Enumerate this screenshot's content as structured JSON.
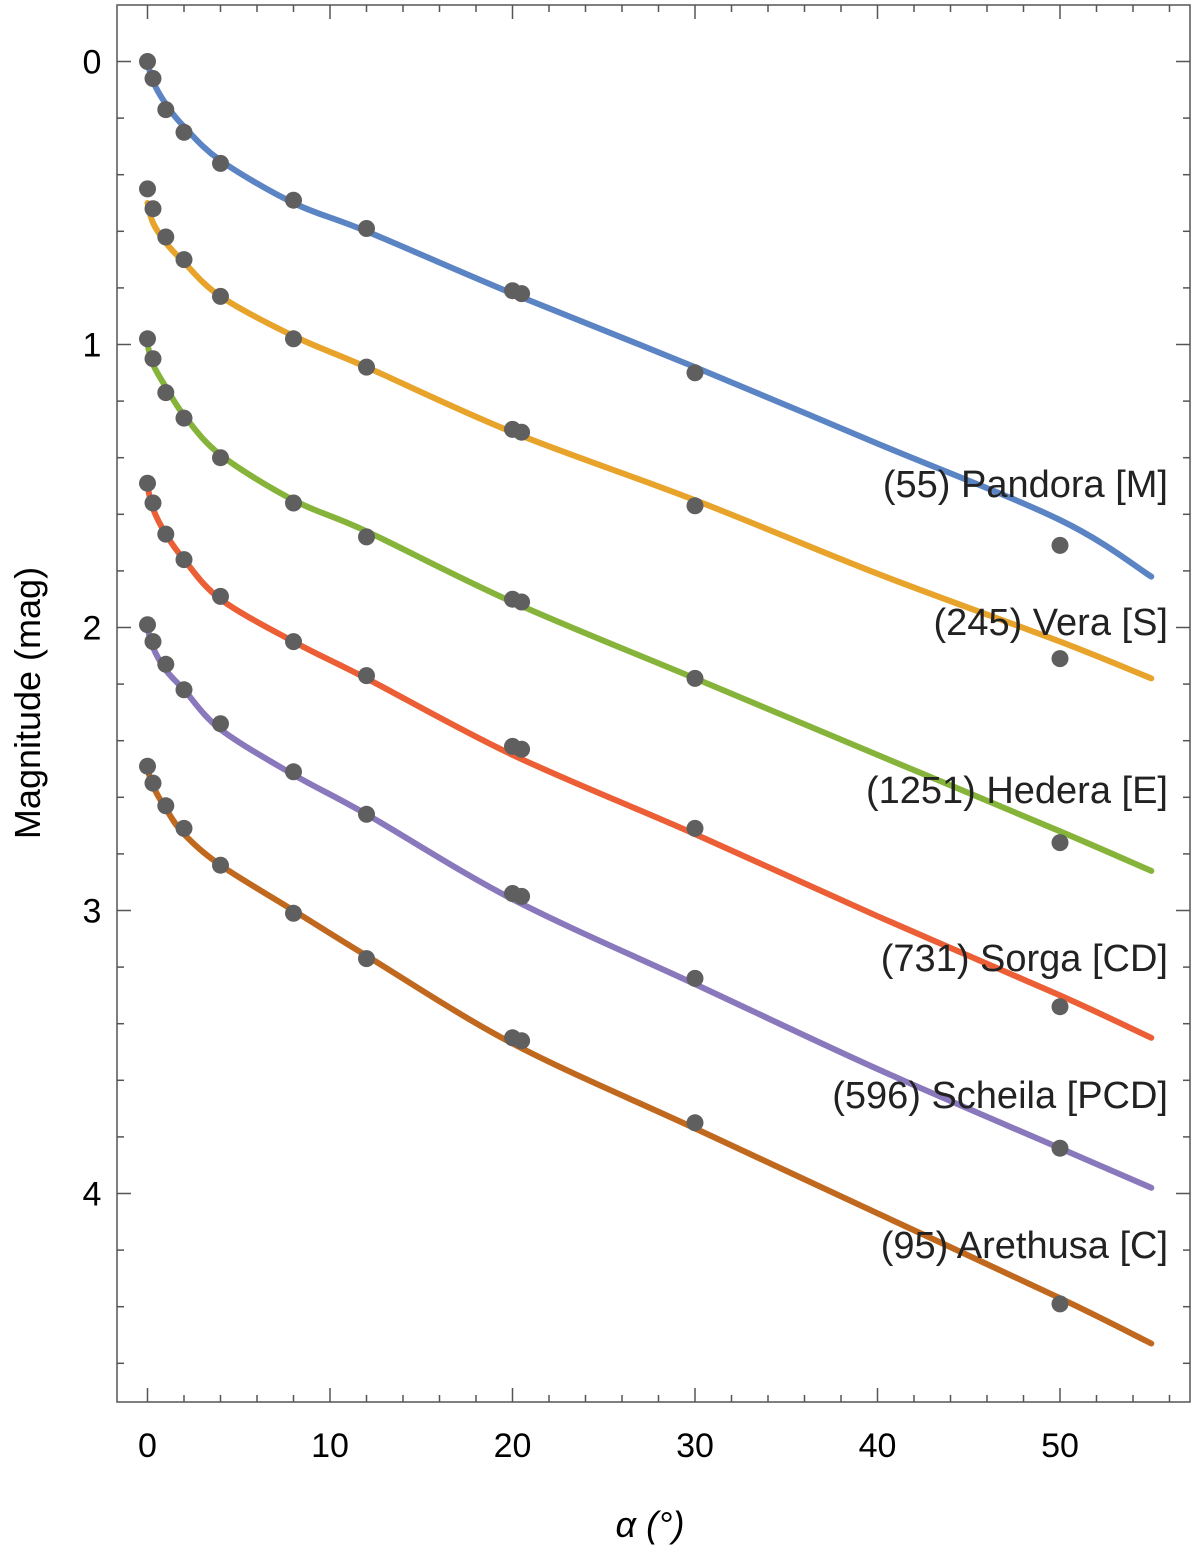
{
  "chart_data": {
    "type": "line",
    "xlabel": "α (°)",
    "ylabel": "Magnitude (mag)",
    "xlim": [
      -1.5,
      57
    ],
    "ylim": [
      4.75,
      -0.2
    ],
    "y_axis_inverted": true,
    "x_ticks": [
      0,
      10,
      20,
      30,
      40,
      50
    ],
    "y_ticks": [
      0,
      1,
      2,
      3,
      4
    ],
    "x_minor_step": 2,
    "y_minor_step": 0.2,
    "grid": false,
    "observation_marker_color": "#5f5f5f",
    "series": [
      {
        "name": "(55) Pandora [M]",
        "color": "#5b84c4",
        "curve_x": [
          0,
          0.3,
          1,
          2,
          4,
          8,
          12,
          20,
          30,
          40,
          50,
          55
        ],
        "curve_y": [
          0.0,
          0.07,
          0.15,
          0.23,
          0.35,
          0.5,
          0.6,
          0.82,
          1.08,
          1.35,
          1.62,
          1.82
        ],
        "points_x": [
          0,
          0.3,
          1,
          2,
          4,
          8,
          12,
          20,
          20.5,
          30,
          50
        ],
        "points_y": [
          0.0,
          0.06,
          0.17,
          0.25,
          0.36,
          0.49,
          0.59,
          0.81,
          0.82,
          1.1,
          1.71
        ]
      },
      {
        "name": "(245) Vera [S]",
        "color": "#e8a32a",
        "curve_x": [
          0,
          0.3,
          1,
          2,
          4,
          8,
          12,
          20,
          30,
          40,
          50,
          55
        ],
        "curve_y": [
          0.5,
          0.57,
          0.64,
          0.71,
          0.83,
          0.97,
          1.08,
          1.31,
          1.55,
          1.81,
          2.05,
          2.18
        ],
        "points_x": [
          0,
          0.3,
          1,
          2,
          4,
          8,
          12,
          20,
          20.5,
          30,
          50
        ],
        "points_y": [
          0.45,
          0.52,
          0.62,
          0.7,
          0.83,
          0.98,
          1.08,
          1.3,
          1.31,
          1.57,
          2.11
        ]
      },
      {
        "name": "(1251) Hedera [E]",
        "color": "#86b33a",
        "curve_x": [
          0,
          0.3,
          1,
          2,
          4,
          8,
          12,
          20,
          30,
          40,
          50,
          55
        ],
        "curve_y": [
          1.0,
          1.07,
          1.15,
          1.25,
          1.39,
          1.55,
          1.66,
          1.91,
          2.18,
          2.45,
          2.72,
          2.86
        ],
        "points_x": [
          0,
          0.3,
          1,
          2,
          4,
          8,
          12,
          20,
          20.5,
          30,
          50
        ],
        "points_y": [
          0.98,
          1.05,
          1.17,
          1.26,
          1.4,
          1.56,
          1.68,
          1.9,
          1.91,
          2.18,
          2.76
        ]
      },
      {
        "name": "(731) Sorga [CD]",
        "color": "#ec5f36",
        "curve_x": [
          0,
          0.3,
          1,
          2,
          4,
          8,
          12,
          20,
          30,
          40,
          50,
          55
        ],
        "curve_y": [
          1.5,
          1.58,
          1.67,
          1.76,
          1.9,
          2.05,
          2.18,
          2.45,
          2.73,
          3.02,
          3.3,
          3.45
        ],
        "points_x": [
          0,
          0.3,
          1,
          2,
          4,
          8,
          12,
          20,
          20.5,
          30,
          50
        ],
        "points_y": [
          1.49,
          1.56,
          1.67,
          1.76,
          1.89,
          2.05,
          2.17,
          2.42,
          2.43,
          2.71,
          3.34
        ]
      },
      {
        "name": "(596) Scheila [PCD]",
        "color": "#8a78bd",
        "curve_x": [
          0,
          0.3,
          1,
          2,
          4,
          8,
          12,
          20,
          30,
          40,
          50,
          55
        ],
        "curve_y": [
          2.0,
          2.07,
          2.15,
          2.22,
          2.36,
          2.52,
          2.66,
          2.96,
          3.26,
          3.56,
          3.84,
          3.98
        ],
        "points_x": [
          0,
          0.3,
          1,
          2,
          4,
          8,
          12,
          20,
          20.5,
          30,
          50
        ],
        "points_y": [
          1.99,
          2.05,
          2.13,
          2.22,
          2.34,
          2.51,
          2.66,
          2.94,
          2.95,
          3.24,
          3.84
        ]
      },
      {
        "name": "(95) Arethusa [C]",
        "color": "#c0691e",
        "curve_x": [
          0,
          0.3,
          1,
          2,
          4,
          8,
          12,
          20,
          30,
          40,
          50,
          55
        ],
        "curve_y": [
          2.5,
          2.56,
          2.64,
          2.73,
          2.84,
          3.0,
          3.16,
          3.47,
          3.77,
          4.07,
          4.37,
          4.53
        ],
        "points_x": [
          0,
          0.3,
          1,
          2,
          4,
          8,
          12,
          20,
          20.5,
          30,
          50
        ],
        "points_y": [
          2.49,
          2.55,
          2.63,
          2.71,
          2.84,
          3.01,
          3.17,
          3.45,
          3.46,
          3.75,
          4.39
        ]
      }
    ]
  }
}
